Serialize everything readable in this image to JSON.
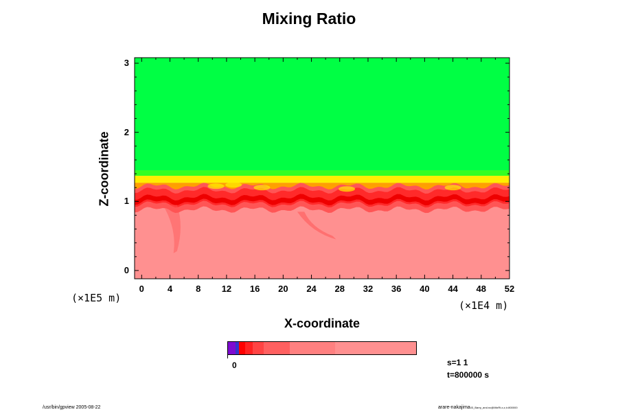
{
  "chart_data": {
    "type": "heatmap",
    "title": "Mixing Ratio",
    "xlabel": "X-coordinate",
    "ylabel": "Z-coordinate",
    "x_scale_label": "(×1E4 m)",
    "y_scale_label": "(×1E5 m)",
    "x_ticks": [
      "0",
      "4",
      "8",
      "12",
      "16",
      "20",
      "24",
      "28",
      "32",
      "36",
      "40",
      "44",
      "48",
      "52"
    ],
    "y_ticks": [
      "0",
      "1",
      "2",
      "3"
    ],
    "xlim": [
      -1,
      52
    ],
    "ylim": [
      -0.12,
      3.08
    ],
    "grid": false,
    "colors": {
      "upper": "#00ff44",
      "transition_top": "#33ff22",
      "yellow": "#ffee00",
      "orange": "#ffa000",
      "red_dark": "#ee0000",
      "red": "#ff2a2a",
      "red_mid": "#ff5555",
      "lower": "#ff9090",
      "lower_light": "#ff8c8c"
    },
    "colorbar": {
      "tick_label": "0",
      "colors": [
        "#7d0bd0",
        "#3333cc",
        "#ff0000",
        "#ff2222",
        "#ff4444",
        "#ff6060",
        "#ff8080",
        "#ff9090"
      ]
    },
    "annotations": {
      "step": "s=1 1",
      "time": "t=800000 s"
    }
  },
  "footer": {
    "left": "/usr/bin/gpview 2005-08-22",
    "right_main": "arare-nakajima",
    "right_small": "03_Barry_and.nc@MixRt,x,z,t=800000"
  }
}
